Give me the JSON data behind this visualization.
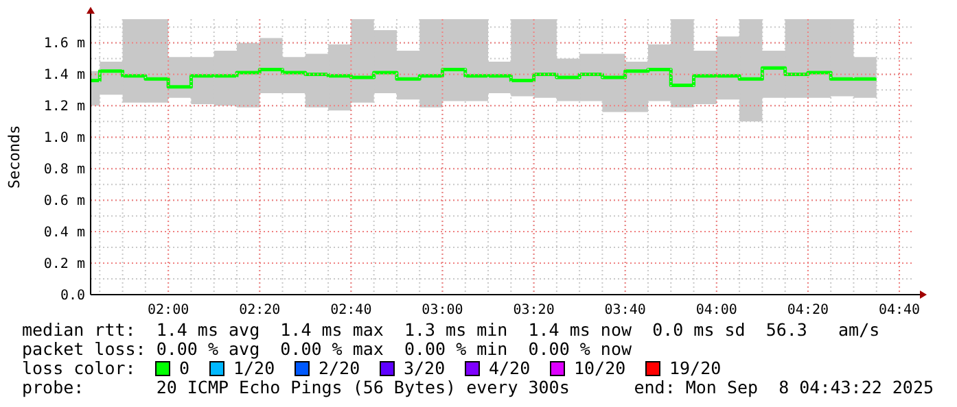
{
  "chart_data": {
    "type": "step",
    "ylabel": "Seconds",
    "legend_title": "loss color:",
    "legend": "bottom",
    "grid": true,
    "xlim": [
      "2025-09-08T01:43",
      "2025-09-08T04:43"
    ],
    "xticks": [
      {
        "value": "2025-09-08T02:00",
        "label": "02:00"
      },
      {
        "value": "2025-09-08T02:20",
        "label": "02:20"
      },
      {
        "value": "2025-09-08T02:40",
        "label": "02:40"
      },
      {
        "value": "2025-09-08T03:00",
        "label": "03:00"
      },
      {
        "value": "2025-09-08T03:20",
        "label": "03:20"
      },
      {
        "value": "2025-09-08T03:40",
        "label": "03:40"
      },
      {
        "value": "2025-09-08T04:00",
        "label": "04:00"
      },
      {
        "value": "2025-09-08T04:20",
        "label": "04:20"
      },
      {
        "value": "2025-09-08T04:40",
        "label": "04:40"
      }
    ],
    "ylim": [
      0,
      1.75
    ],
    "yticks": [
      {
        "value": 0,
        "label": "0.0"
      },
      {
        "value": 0.2,
        "label": "0.2 m"
      },
      {
        "value": 0.4,
        "label": "0.4 m"
      },
      {
        "value": 0.6,
        "label": "0.6 m"
      },
      {
        "value": 0.8,
        "label": "0.8 m"
      },
      {
        "value": 1.0,
        "label": "1.0 m"
      },
      {
        "value": 1.2,
        "label": "1.2 m"
      },
      {
        "value": 1.4,
        "label": "1.4 m"
      },
      {
        "value": 1.6,
        "label": "1.6 m"
      }
    ],
    "x": [
      "2025-09-08T01:45",
      "2025-09-08T01:50",
      "2025-09-08T01:55",
      "2025-09-08T02:00",
      "2025-09-08T02:05",
      "2025-09-08T02:10",
      "2025-09-08T02:15",
      "2025-09-08T02:20",
      "2025-09-08T02:25",
      "2025-09-08T02:30",
      "2025-09-08T02:35",
      "2025-09-08T02:40",
      "2025-09-08T02:45",
      "2025-09-08T02:50",
      "2025-09-08T02:55",
      "2025-09-08T03:00",
      "2025-09-08T03:05",
      "2025-09-08T03:10",
      "2025-09-08T03:15",
      "2025-09-08T03:20",
      "2025-09-08T03:25",
      "2025-09-08T03:30",
      "2025-09-08T03:35",
      "2025-09-08T03:40",
      "2025-09-08T03:45",
      "2025-09-08T03:50",
      "2025-09-08T03:55",
      "2025-09-08T04:00",
      "2025-09-08T04:05",
      "2025-09-08T04:10",
      "2025-09-08T04:15",
      "2025-09-08T04:20",
      "2025-09-08T04:25",
      "2025-09-08T04:30",
      "2025-09-08T04:35"
    ],
    "series": [
      {
        "color": "#00ff00",
        "values": [
          1.36,
          1.42,
          1.39,
          1.37,
          1.32,
          1.39,
          1.39,
          1.41,
          1.43,
          1.41,
          1.4,
          1.39,
          1.38,
          1.41,
          1.37,
          1.39,
          1.43,
          1.39,
          1.39,
          1.36,
          1.4,
          1.38,
          1.4,
          1.38,
          1.42,
          1.43,
          1.33,
          1.39,
          1.39,
          1.37,
          1.44,
          1.4,
          1.41,
          1.37,
          1.37
        ],
        "lower": [
          1.2,
          1.27,
          1.22,
          1.22,
          1.25,
          1.21,
          1.2,
          1.19,
          1.28,
          1.28,
          1.19,
          1.17,
          1.22,
          1.28,
          1.24,
          1.19,
          1.23,
          1.23,
          1.28,
          1.26,
          1.25,
          1.23,
          1.23,
          1.16,
          1.16,
          1.23,
          1.19,
          1.21,
          1.24,
          1.1,
          1.25,
          1.25,
          1.25,
          1.26,
          1.25
        ],
        "upper": [
          1.42,
          1.48,
          1.75,
          1.75,
          1.51,
          1.51,
          1.55,
          1.6,
          1.63,
          1.51,
          1.53,
          1.59,
          1.75,
          1.68,
          1.55,
          1.75,
          1.75,
          1.75,
          1.48,
          1.75,
          1.75,
          1.5,
          1.53,
          1.53,
          1.48,
          1.59,
          1.75,
          1.55,
          1.64,
          1.75,
          1.55,
          1.75,
          1.75,
          1.75,
          1.51
        ]
      },
      {
        "name": "0",
        "color": "#00ff00",
        "values": [
          null,
          null,
          null,
          null,
          null,
          null,
          null,
          null,
          null,
          null,
          null,
          null,
          null,
          null,
          null,
          null,
          null,
          null,
          null,
          null,
          null,
          null,
          null,
          null,
          null,
          null,
          null,
          null,
          null,
          null,
          null,
          null,
          null,
          null,
          null
        ]
      },
      {
        "name": "1/20",
        "color": "#00b8ff",
        "values": [
          null,
          null,
          null,
          null,
          null,
          null,
          null,
          null,
          null,
          null,
          null,
          null,
          null,
          null,
          null,
          null,
          null,
          null,
          null,
          null,
          null,
          null,
          null,
          null,
          null,
          null,
          null,
          null,
          null,
          null,
          null,
          null,
          null,
          null,
          null
        ]
      },
      {
        "name": "2/20",
        "color": "#0059ff",
        "values": [
          null,
          null,
          null,
          null,
          null,
          null,
          null,
          null,
          null,
          null,
          null,
          null,
          null,
          null,
          null,
          null,
          null,
          null,
          null,
          null,
          null,
          null,
          null,
          null,
          null,
          null,
          null,
          null,
          null,
          null,
          null,
          null,
          null,
          null,
          null
        ]
      },
      {
        "name": "3/20",
        "color": "#5e00ff",
        "values": [
          null,
          null,
          null,
          null,
          null,
          null,
          null,
          null,
          null,
          null,
          null,
          null,
          null,
          null,
          null,
          null,
          null,
          null,
          null,
          null,
          null,
          null,
          null,
          null,
          null,
          null,
          null,
          null,
          null,
          null,
          null,
          null,
          null,
          null,
          null
        ]
      },
      {
        "name": "4/20",
        "color": "#7e00ff",
        "values": [
          null,
          null,
          null,
          null,
          null,
          null,
          null,
          null,
          null,
          null,
          null,
          null,
          null,
          null,
          null,
          null,
          null,
          null,
          null,
          null,
          null,
          null,
          null,
          null,
          null,
          null,
          null,
          null,
          null,
          null,
          null,
          null,
          null,
          null,
          null
        ]
      },
      {
        "name": "10/20",
        "color": "#dd00ff",
        "values": [
          null,
          null,
          null,
          null,
          null,
          null,
          null,
          null,
          null,
          null,
          null,
          null,
          null,
          null,
          null,
          null,
          null,
          null,
          null,
          null,
          null,
          null,
          null,
          null,
          null,
          null,
          null,
          null,
          null,
          null,
          null,
          null,
          null,
          null,
          null
        ]
      },
      {
        "name": "19/20",
        "color": "#ff0000",
        "values": [
          null,
          null,
          null,
          null,
          null,
          null,
          null,
          null,
          null,
          null,
          null,
          null,
          null,
          null,
          null,
          null,
          null,
          null,
          null,
          null,
          null,
          null,
          null,
          null,
          null,
          null,
          null,
          null,
          null,
          null,
          null,
          null,
          null,
          null,
          null
        ]
      }
    ],
    "annotations": [
      "median rtt:  1.4 ms avg  1.4 ms max  1.3 ms min  1.4 ms now  0.0 ms sd  56.3   am/s",
      "packet loss: 0.00 % avg  0.00 % max  0.00 % min  0.00 % now",
      "probe:       20 ICMP Echo Pings (56 Bytes) every 300s",
      "end: Mon Sep  8 04:43:22 2025"
    ]
  }
}
